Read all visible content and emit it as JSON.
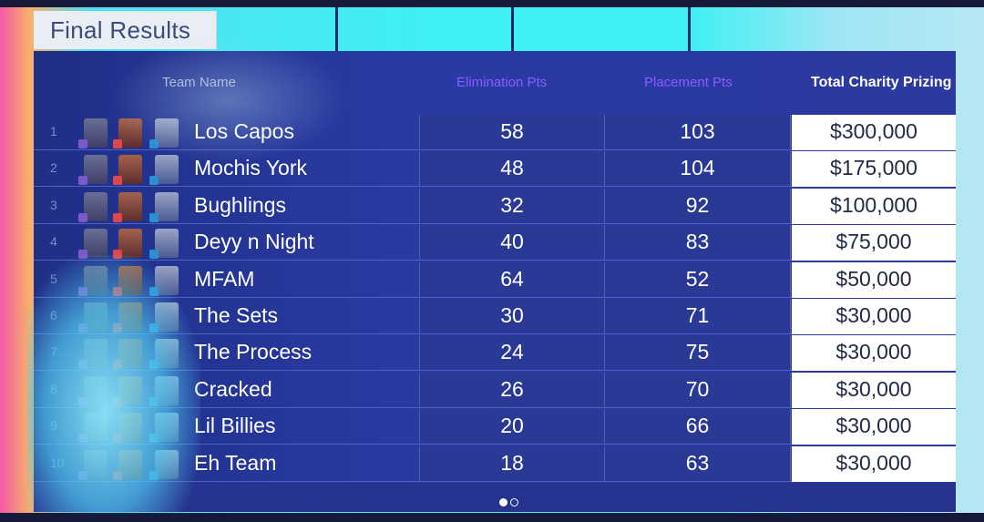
{
  "title": "Final Results",
  "columns": {
    "team": "Team Name",
    "elimination": "Elimination Pts",
    "placement": "Placement Pts",
    "total": "Total Charity Prizing"
  },
  "rows": [
    {
      "rank": "1",
      "team": "Los Capos",
      "elim": "58",
      "place": "103",
      "prize": "$300,000"
    },
    {
      "rank": "2",
      "team": "Mochis York",
      "elim": "48",
      "place": "104",
      "prize": "$175,000"
    },
    {
      "rank": "3",
      "team": "Bughlings",
      "elim": "32",
      "place": "92",
      "prize": "$100,000"
    },
    {
      "rank": "4",
      "team": "Deyy n Night",
      "elim": "40",
      "place": "83",
      "prize": "$75,000"
    },
    {
      "rank": "5",
      "team": "MFAM",
      "elim": "64",
      "place": "52",
      "prize": "$50,000"
    },
    {
      "rank": "6",
      "team": "The Sets",
      "elim": "30",
      "place": "71",
      "prize": "$30,000"
    },
    {
      "rank": "7",
      "team": "The Process",
      "elim": "24",
      "place": "75",
      "prize": "$30,000"
    },
    {
      "rank": "8",
      "team": "Cracked",
      "elim": "26",
      "place": "70",
      "prize": "$30,000"
    },
    {
      "rank": "9",
      "team": "Lil Billies",
      "elim": "20",
      "place": "66",
      "prize": "$30,000"
    },
    {
      "rank": "10",
      "team": "Eh Team",
      "elim": "18",
      "place": "63",
      "prize": "$30,000"
    }
  ],
  "pagination": {
    "current": 1,
    "total": 2
  }
}
